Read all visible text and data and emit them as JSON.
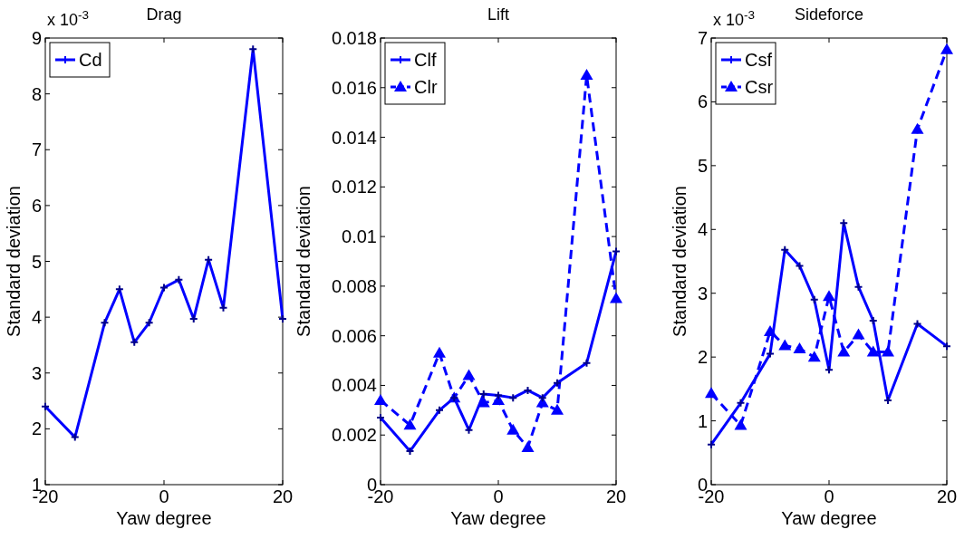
{
  "chart_data": [
    {
      "type": "line",
      "title": "Drag",
      "xlabel": "Yaw degree",
      "ylabel": "Standard deviation",
      "annotations": [
        "x 10$^{-3}$"
      ],
      "xlim": [
        -20,
        20
      ],
      "xticks": [
        -20,
        0,
        20
      ],
      "ylim": [
        1,
        9
      ],
      "yticks": [
        1,
        2,
        3,
        4,
        5,
        6,
        7,
        8,
        9
      ],
      "legend": "top left",
      "x": [
        -20,
        -15,
        -10,
        -7.5,
        -5,
        -2.5,
        0,
        2.5,
        5,
        7.5,
        10,
        15,
        20
      ],
      "series": [
        {
          "name": "Cd",
          "color": "#0000ff",
          "marker": "cross",
          "line_style": "solid",
          "values": [
            2.4,
            1.85,
            3.9,
            4.5,
            3.55,
            3.9,
            4.53,
            4.67,
            3.97,
            5.03,
            4.17,
            8.8,
            3.97
          ]
        }
      ]
    },
    {
      "type": "line",
      "title": "Lift",
      "xlabel": "Yaw degree",
      "ylabel": "Standard deviation",
      "xlim": [
        -20,
        20
      ],
      "xticks": [
        -20,
        0,
        20
      ],
      "ylim": [
        0,
        0.018
      ],
      "yticks": [
        0,
        0.002,
        0.004,
        0.006,
        0.008,
        0.01,
        0.012,
        0.014,
        0.016,
        0.018
      ],
      "legend": "top left",
      "x": [
        -20,
        -15,
        -10,
        -7.5,
        -5,
        -2.5,
        0,
        2.5,
        5,
        7.5,
        10,
        15,
        20
      ],
      "series": [
        {
          "name": "Clf",
          "color": "#0000ff",
          "marker": "cross",
          "line_style": "solid",
          "values": [
            0.0027,
            0.00135,
            0.003,
            0.0035,
            0.0022,
            0.00365,
            0.0036,
            0.0035,
            0.0038,
            0.0035,
            0.0041,
            0.0049,
            0.0094
          ]
        },
        {
          "name": "Clr",
          "color": "#0000ff",
          "marker": "triangle",
          "line_style": "dashed",
          "values": [
            0.0034,
            0.0024,
            0.0053,
            0.0035,
            0.0044,
            0.0033,
            0.0034,
            0.0022,
            0.0015,
            0.0033,
            0.003,
            0.0165,
            0.0075
          ]
        }
      ]
    },
    {
      "type": "line",
      "title": "Sideforce",
      "xlabel": "Yaw degree",
      "ylabel": "Standard deviation",
      "annotations": [
        "x 10$^{-3}$"
      ],
      "xlim": [
        -20,
        20
      ],
      "xticks": [
        -20,
        0,
        20
      ],
      "ylim": [
        0,
        7
      ],
      "yticks": [
        0,
        1,
        2,
        3,
        4,
        5,
        6,
        7
      ],
      "legend": "top left",
      "x": [
        -20,
        -15,
        -10,
        -7.5,
        -5,
        -2.5,
        0,
        2.5,
        5,
        7.5,
        10,
        15,
        20
      ],
      "series": [
        {
          "name": "Csf",
          "color": "#0000ff",
          "marker": "cross",
          "line_style": "solid",
          "values": [
            0.63,
            1.28,
            2.05,
            3.68,
            3.43,
            2.9,
            1.8,
            4.1,
            3.1,
            2.57,
            1.32,
            2.52,
            2.17
          ]
        },
        {
          "name": "Csr",
          "color": "#0000ff",
          "marker": "triangle",
          "line_style": "dashed",
          "values": [
            1.43,
            0.93,
            2.4,
            2.18,
            2.13,
            2.0,
            2.95,
            2.08,
            2.35,
            2.08,
            2.08,
            5.57,
            6.82
          ]
        }
      ]
    }
  ]
}
